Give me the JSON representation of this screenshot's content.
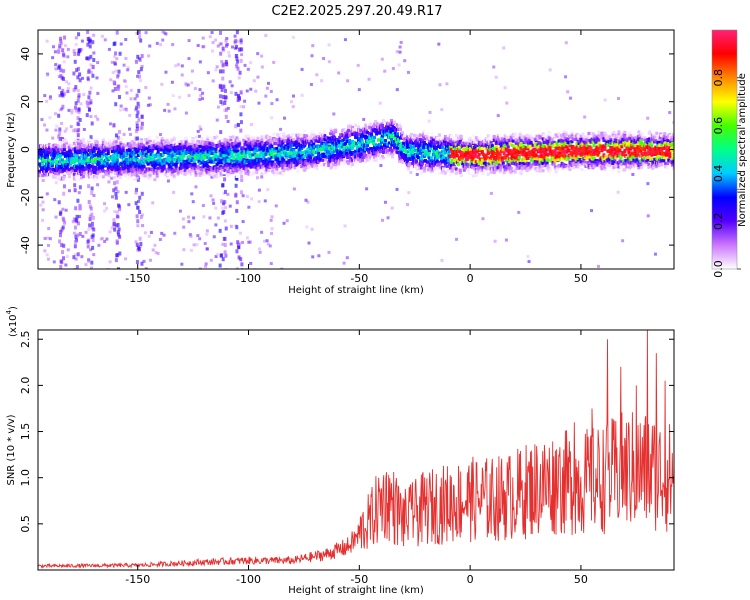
{
  "title": "C2E2.2025.297.20.49.R17",
  "chart_data": [
    {
      "type": "heatmap",
      "xlabel": "Height of straight line (km)",
      "ylabel": "Frequency (Hz)",
      "xlim": [
        -195,
        92
      ],
      "ylim": [
        -50,
        50
      ],
      "xticks": [
        -150,
        -100,
        -50,
        0,
        50
      ],
      "yticks": [
        -40,
        -20,
        0,
        20,
        40
      ],
      "colorbar": {
        "label": "Normalized spectral amplitude",
        "range": [
          0,
          1
        ],
        "ticks": [
          "0.0",
          "0.2",
          "0.4",
          "0.6",
          "0.8"
        ],
        "colors": [
          "#ffffff",
          "#cc77ff",
          "#5500ff",
          "#0000ff",
          "#00ccff",
          "#00ff88",
          "#44ff00",
          "#ffff00",
          "#ff8800",
          "#ff0000",
          "#ff2277"
        ]
      },
      "ridge": {
        "description_points": [
          {
            "x": -190,
            "y": -4
          },
          {
            "x": -150,
            "y": -3
          },
          {
            "x": -100,
            "y": -2
          },
          {
            "x": -70,
            "y": 0
          },
          {
            "x": -50,
            "y": 3
          },
          {
            "x": -35,
            "y": 6
          },
          {
            "x": -30,
            "y": 0
          },
          {
            "x": 0,
            "y": -2
          },
          {
            "x": 20,
            "y": -1
          },
          {
            "x": 50,
            "y": 0
          },
          {
            "x": 92,
            "y": 0
          }
        ],
        "peak_amplitude_range_x": [
          -10,
          90
        ]
      }
    },
    {
      "type": "line",
      "xlabel": "Height of straight line (km)",
      "ylabel": "SNR (10 * v/v)",
      "y_multiplier": "(x10",
      "y_multiplier_exp": "4",
      "y_multiplier_close": ")",
      "xlim": [
        -195,
        92
      ],
      "ylim": [
        0,
        2.6
      ],
      "xticks": [
        -150,
        -100,
        -50,
        0,
        50
      ],
      "yticks": [
        0.5,
        1.0,
        1.5,
        2.0,
        2.5
      ],
      "ytick_labels": [
        "0.5",
        "1.0",
        "1.5",
        "2.0",
        "2.5"
      ],
      "series": [
        {
          "color": "#e53030",
          "envelope": [
            {
              "x": -195,
              "y": 0.05
            },
            {
              "x": -150,
              "y": 0.06
            },
            {
              "x": -120,
              "y": 0.1
            },
            {
              "x": -100,
              "y": 0.12
            },
            {
              "x": -80,
              "y": 0.12
            },
            {
              "x": -65,
              "y": 0.2
            },
            {
              "x": -55,
              "y": 0.3
            },
            {
              "x": -45,
              "y": 0.6
            },
            {
              "x": -38,
              "y": 0.9
            },
            {
              "x": -30,
              "y": 0.6
            },
            {
              "x": -20,
              "y": 0.75
            },
            {
              "x": -10,
              "y": 0.8
            },
            {
              "x": 0,
              "y": 0.85
            },
            {
              "x": 10,
              "y": 0.85
            },
            {
              "x": 20,
              "y": 0.9
            },
            {
              "x": 30,
              "y": 1.0
            },
            {
              "x": 40,
              "y": 1.05
            },
            {
              "x": 50,
              "y": 1.05
            },
            {
              "x": 60,
              "y": 1.1
            },
            {
              "x": 70,
              "y": 1.2
            },
            {
              "x": 80,
              "y": 1.2
            },
            {
              "x": 92,
              "y": 1.1
            }
          ],
          "spikes": [
            {
              "x": -38,
              "y": 1.0
            },
            {
              "x": -33,
              "y": 0.75
            },
            {
              "x": -26,
              "y": 0.95
            },
            {
              "x": 0,
              "y": 0.95
            },
            {
              "x": 40,
              "y": 1.25
            },
            {
              "x": 47,
              "y": 1.6
            },
            {
              "x": 55,
              "y": 1.75
            },
            {
              "x": 62,
              "y": 2.5
            },
            {
              "x": 68,
              "y": 2.2
            },
            {
              "x": 75,
              "y": 2.0
            },
            {
              "x": 80,
              "y": 2.6
            },
            {
              "x": 84,
              "y": 2.35
            },
            {
              "x": 88,
              "y": 2.05
            }
          ]
        }
      ]
    }
  ]
}
